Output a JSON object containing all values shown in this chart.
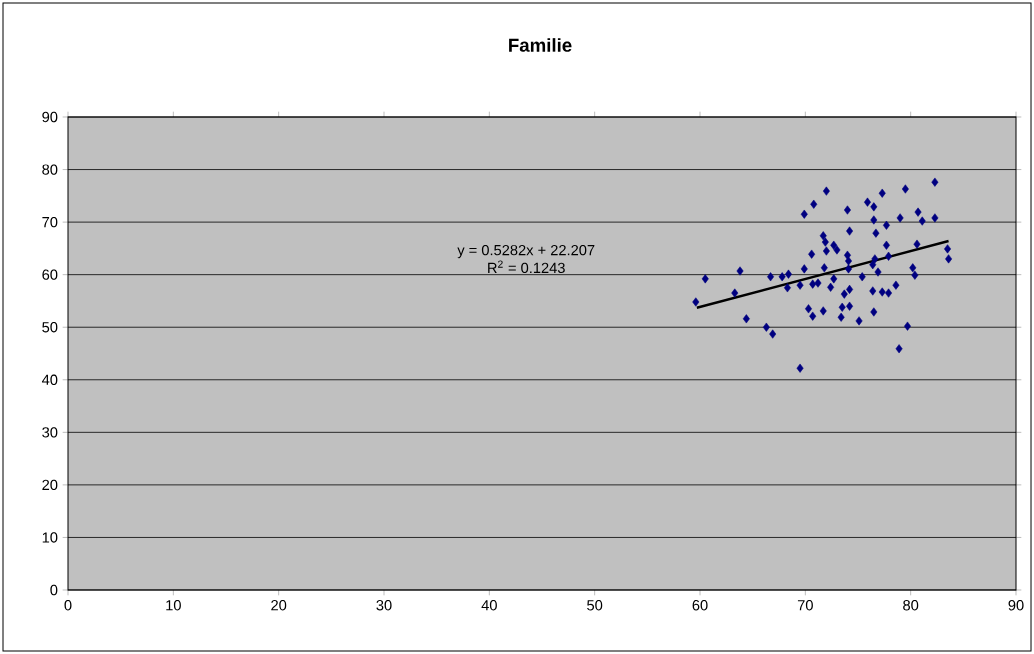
{
  "chart_data": {
    "type": "scatter",
    "title": "Familie",
    "xlim": [
      0,
      90
    ],
    "xticks": [
      0,
      10,
      20,
      30,
      40,
      50,
      60,
      70,
      80,
      90
    ],
    "ylim": [
      0,
      90
    ],
    "yticks": [
      0,
      10,
      20,
      30,
      40,
      50,
      60,
      70,
      80,
      90
    ],
    "grid": "y",
    "marker": "diamond",
    "annotations": [
      "y = 0.5282x + 22.207",
      "R$^{2}$ = 0.1243"
    ],
    "series": [
      {
        "color": "#000080",
        "x": [
          59.6,
          60.5,
          63.8,
          63.3,
          64.4,
          66.3,
          66.9,
          66.7,
          67.8,
          68.4,
          68.3,
          69.5,
          69.9,
          70.8,
          70.6,
          69.9,
          69.5,
          70.7,
          70.3,
          70.7,
          72.0,
          74.0,
          75.9,
          76.5,
          77.3,
          79.5,
          82.3,
          80.7,
          81.1,
          82.3,
          79.0,
          77.7,
          76.5,
          76.7,
          74.2,
          71.7,
          71.9,
          72.0,
          72.7,
          73.0,
          74.0,
          74.1,
          77.7,
          77.9,
          80.6,
          83.5,
          83.6,
          76.6,
          76.4,
          76.9,
          74.1,
          71.8,
          80.2,
          80.4,
          75.4,
          71.2,
          72.7,
          72.4,
          74.2,
          73.7,
          76.4,
          77.3,
          77.9,
          78.6,
          73.5,
          74.2,
          71.7,
          73.4,
          75.1,
          76.5,
          79.7,
          78.9
        ],
        "values": [
          54.8,
          59.2,
          60.7,
          56.5,
          51.6,
          50.0,
          48.7,
          59.6,
          59.6,
          60.1,
          57.5,
          42.2,
          71.5,
          73.4,
          63.9,
          61.1,
          58.0,
          58.2,
          53.5,
          52.1,
          75.9,
          72.3,
          73.8,
          72.9,
          75.5,
          76.3,
          77.6,
          71.9,
          70.2,
          70.8,
          70.8,
          69.4,
          70.4,
          67.9,
          68.3,
          67.4,
          66.2,
          64.5,
          65.6,
          64.7,
          63.7,
          62.6,
          65.6,
          63.5,
          65.8,
          64.9,
          63.0,
          63.0,
          61.9,
          60.5,
          61.1,
          61.3,
          61.3,
          59.9,
          59.6,
          58.4,
          59.2,
          57.6,
          57.2,
          56.3,
          56.9,
          56.7,
          56.5,
          58.0,
          53.8,
          54.0,
          53.1,
          51.9,
          51.2,
          52.9,
          50.2,
          45.9
        ]
      },
      {
        "type": "line",
        "color": "#000000",
        "marker": "none",
        "x": [
          59.7,
          83.6
        ],
        "values": [
          53.7,
          66.4
        ]
      }
    ]
  }
}
